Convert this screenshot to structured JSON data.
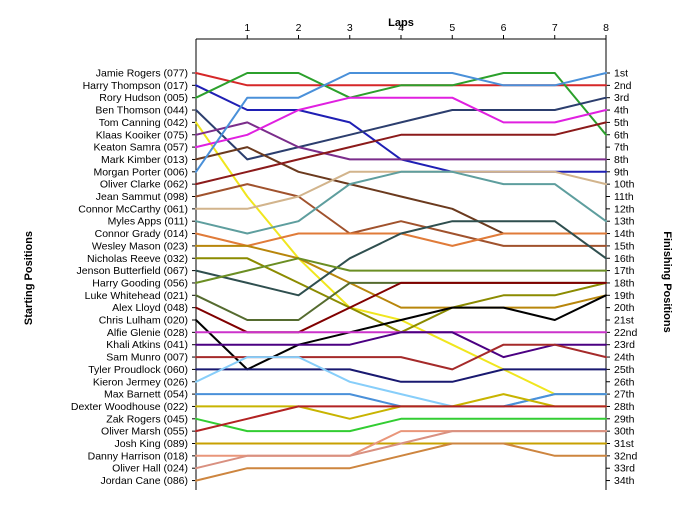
{
  "chart_data": {
    "type": "line",
    "title": "",
    "xlabel": "Laps",
    "ylabel_left": "Starting Positions",
    "ylabel_right": "Finishing Positions",
    "x": [
      0,
      1,
      2,
      3,
      4,
      5,
      6,
      7,
      8
    ],
    "x_tick_labels": [
      "1",
      "2",
      "3",
      "4",
      "5",
      "6",
      "7",
      "8"
    ],
    "y_inverted": true,
    "y_range": [
      1,
      34
    ],
    "grid": false,
    "starting_grid": [
      "Jamie Rogers (077)",
      "Harry Thompson (017)",
      "Rory Hudson (005)",
      "Ben Thomson (044)",
      "Tom Canning (042)",
      "Klaas Kooiker (075)",
      "Keaton Samra (057)",
      "Mark Kimber (013)",
      "Morgan Porter (006)",
      "Oliver Clarke (062)",
      "Jean Sammut (098)",
      "Connor McCarthy (061)",
      "Myles Apps (011)",
      "Connor Grady (014)",
      "Wesley Mason (023)",
      "Nicholas Reeve (032)",
      "Jenson Butterfield (067)",
      "Harry Gooding (056)",
      "Luke Whitehead (021)",
      "Alex Lloyd (048)",
      "Chris Lulham (020)",
      "Alfie Glenie (028)",
      "Khali Atkins (041)",
      "Sam Munro (007)",
      "Tyler Proudlock (060)",
      "Kieron Jermey (026)",
      "Max Barnett (054)",
      "Dexter Woodhouse (022)",
      "Zak Rogers (045)",
      "Oliver Marsh (055)",
      "Josh King (089)",
      "Danny Harrison (018)",
      "Oliver Hall (024)",
      "Jordan Cane (086)"
    ],
    "finishing_labels": [
      "1st",
      "2nd",
      "3rd",
      "4th",
      "5th",
      "6th",
      "7th",
      "8th",
      "9th",
      "10th",
      "11th",
      "12th",
      "13th",
      "14th",
      "15th",
      "16th",
      "17th",
      "18th",
      "19th",
      "20th",
      "21st",
      "22nd",
      "23rd",
      "24th",
      "25th",
      "26th",
      "27th",
      "28th",
      "29th",
      "30th",
      "31st",
      "32nd",
      "33rd",
      "34th"
    ],
    "series": [
      {
        "values": [
          1,
          2,
          2,
          2,
          2,
          2,
          2,
          2,
          2
        ],
        "color": "#d62728"
      },
      {
        "values": [
          2,
          4,
          4,
          5,
          8,
          9,
          9,
          9,
          9
        ],
        "color": "#1f1fb4"
      },
      {
        "values": [
          3,
          1,
          1,
          3,
          2,
          2,
          1,
          1,
          6
        ],
        "color": "#2ca02c"
      },
      {
        "values": [
          4,
          8,
          7,
          6,
          5,
          4,
          4,
          4,
          3
        ],
        "color": "#2c3e6e"
      },
      {
        "values": [
          5,
          11,
          16,
          20,
          21,
          23,
          25,
          27,
          27
        ],
        "color": "#f0e61e"
      },
      {
        "values": [
          6,
          5,
          7,
          8,
          8,
          8,
          8,
          8,
          8
        ],
        "color": "#7b2d8b"
      },
      {
        "values": [
          7,
          6,
          4,
          3,
          3,
          3,
          5,
          5,
          4
        ],
        "color": "#e020e0"
      },
      {
        "values": [
          8,
          7,
          9,
          10,
          11,
          12,
          14,
          14,
          14
        ],
        "color": "#6b3a1e"
      },
      {
        "values": [
          9,
          3,
          3,
          1,
          1,
          1,
          2,
          2,
          1
        ],
        "color": "#4a90d9"
      },
      {
        "values": [
          10,
          9,
          8,
          7,
          6,
          6,
          6,
          6,
          5
        ],
        "color": "#8b1a1a"
      },
      {
        "values": [
          11,
          10,
          11,
          14,
          13,
          14,
          15,
          15,
          15
        ],
        "color": "#a0522d"
      },
      {
        "values": [
          12,
          12,
          11,
          9,
          9,
          9,
          9,
          9,
          10
        ],
        "color": "#d2b48c"
      },
      {
        "values": [
          13,
          14,
          13,
          10,
          9,
          9,
          10,
          10,
          13
        ],
        "color": "#5e9e9e"
      },
      {
        "values": [
          14,
          15,
          14,
          14,
          14,
          15,
          14,
          14,
          14
        ],
        "color": "#e07b39"
      },
      {
        "values": [
          15,
          15,
          16,
          18,
          20,
          20,
          20,
          20,
          19
        ],
        "color": "#b8860b"
      },
      {
        "values": [
          16,
          16,
          18,
          20,
          22,
          20,
          19,
          19,
          18
        ],
        "color": "#8b8b00"
      },
      {
        "values": [
          17,
          18,
          19,
          16,
          14,
          13,
          13,
          13,
          16
        ],
        "color": "#2f4f4f"
      },
      {
        "values": [
          18,
          17,
          16,
          17,
          17,
          17,
          17,
          17,
          17
        ],
        "color": "#6b8e23"
      },
      {
        "values": [
          19,
          21,
          21,
          18,
          18,
          18,
          18,
          18,
          18
        ],
        "color": "#556b2f"
      },
      {
        "values": [
          20,
          22,
          22,
          20,
          18,
          18,
          18,
          18,
          18
        ],
        "color": "#800000"
      },
      {
        "values": [
          21,
          25,
          23,
          22,
          21,
          20,
          20,
          21,
          19
        ],
        "color": "#000000"
      },
      {
        "values": [
          22,
          22,
          22,
          22,
          22,
          22,
          22,
          22,
          22
        ],
        "color": "#cc33cc"
      },
      {
        "values": [
          23,
          23,
          23,
          23,
          22,
          22,
          24,
          23,
          23
        ],
        "color": "#4b0082"
      },
      {
        "values": [
          24,
          24,
          24,
          24,
          24,
          25,
          23,
          23,
          24
        ],
        "color": "#a52a2a"
      },
      {
        "values": [
          25,
          25,
          25,
          25,
          26,
          26,
          25,
          25,
          25
        ],
        "color": "#191970"
      },
      {
        "values": [
          26,
          24,
          24,
          26,
          27,
          28,
          28,
          27,
          27
        ],
        "color": "#87cefa"
      },
      {
        "values": [
          27,
          27,
          27,
          27,
          28,
          28,
          28,
          27,
          27
        ],
        "color": "#4a90d9"
      },
      {
        "values": [
          28,
          28,
          28,
          29,
          28,
          28,
          27,
          28,
          28
        ],
        "color": "#c8b400"
      },
      {
        "values": [
          29,
          30,
          30,
          30,
          29,
          29,
          29,
          29,
          29
        ],
        "color": "#32cd32"
      },
      {
        "values": [
          30,
          29,
          28,
          28,
          28,
          28,
          28,
          28,
          28
        ],
        "color": "#b22222"
      },
      {
        "values": [
          31,
          31,
          31,
          31,
          31,
          31,
          31,
          31,
          31
        ],
        "color": "#c8a000"
      },
      {
        "values": [
          32,
          32,
          32,
          32,
          30,
          30,
          30,
          30,
          30
        ],
        "color": "#e9967a"
      },
      {
        "values": [
          33,
          32,
          32,
          32,
          31,
          30,
          30,
          30,
          30
        ],
        "color": "#d99080"
      },
      {
        "values": [
          34,
          33,
          33,
          33,
          32,
          31,
          31,
          32,
          32
        ],
        "color": "#cd853f"
      }
    ]
  }
}
